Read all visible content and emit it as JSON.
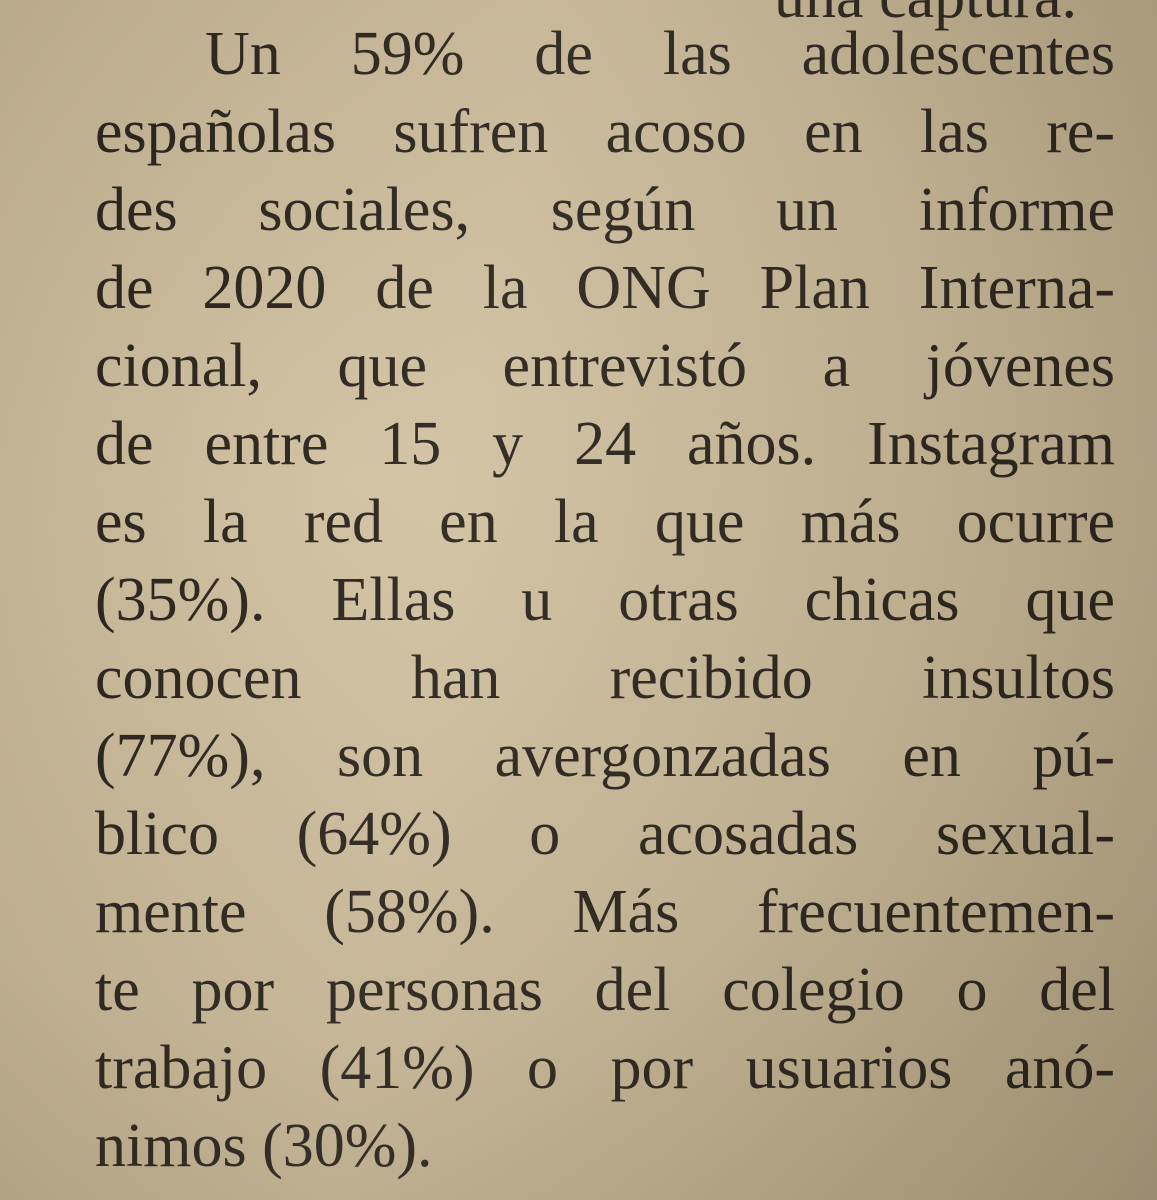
{
  "top_fragment": "una captura.",
  "paragraph": {
    "lines": [
      "Un 59% de las adolescentes",
      "españolas sufren acoso en las re-",
      "des sociales, según un informe",
      "de 2020 de la ONG Plan Interna-",
      "cional, que entrevistó a jóvenes",
      "de entre 15 y 24 años. Instagram",
      "es la red en la que más ocurre",
      "(35%). Ellas u otras chicas que",
      "conocen han recibido insultos",
      "(77%), son avergonzadas en pú-",
      "blico (64%) o acosadas sexual-",
      "mente (58%). Más frecuentemen-",
      "te por personas del colegio o del",
      "trabajo (41%) o por usuarios anó-",
      "nimos (30%)."
    ]
  }
}
